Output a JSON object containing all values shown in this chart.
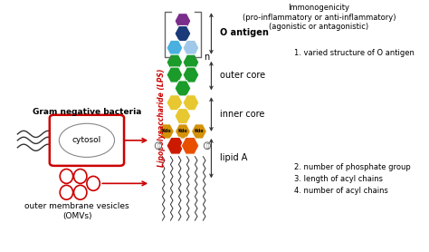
{
  "bg_color": "#ffffff",
  "title_text": "Immonogenicity\n(pro-inflammatory or anti-inflammatory)\n(agonistic or antagonistic)",
  "o_antigen_label": "O antigen",
  "outer_core_label": "outer core",
  "inner_core_label": "inner core",
  "lipid_a_label": "lipid A",
  "lps_label": "Lipopolysaccharide (LPS)",
  "bacteria_label": "Gram negative bacteria",
  "cytosol_label": "cytosol",
  "omv_label": "outer membrane vesicles\n(OMVs)",
  "n_label": "n",
  "point1": "1. varied structure of O antigen",
  "point2": "2. number of phosphate group",
  "point3": "3. length of acyl chains",
  "point4": "4. number of acyl chains",
  "col_purple": "#7b2d8b",
  "col_darkblue": "#1a3a7a",
  "col_cyan": "#4ab0e0",
  "col_lightblue": "#a0c8e8",
  "col_green": "#1a9b2a",
  "col_yellow": "#e8c830",
  "col_kdo": "#d4920a",
  "col_lipidA_L": "#cc1a00",
  "col_lipidA_R": "#e85000",
  "red_color": "#cc0000",
  "dark_gray": "#333333",
  "bracket_color": "#666666"
}
